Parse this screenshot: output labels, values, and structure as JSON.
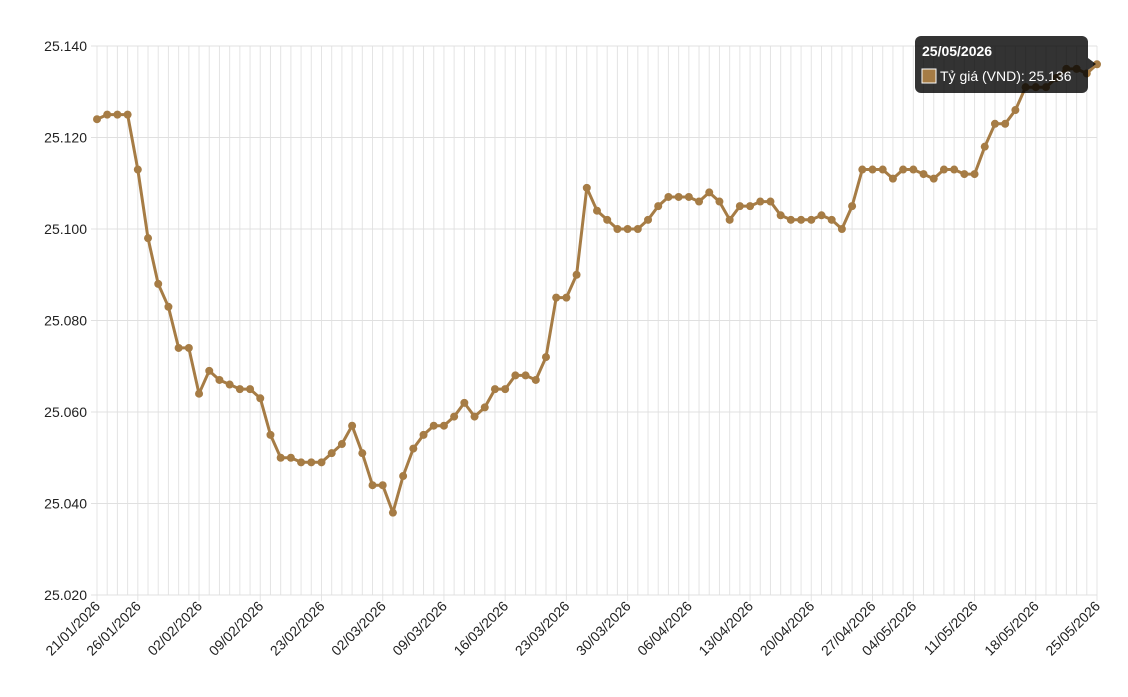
{
  "chart_data": {
    "type": "line",
    "categories": [
      "21/01/2026",
      null,
      null,
      null,
      "26/01/2026",
      null,
      null,
      null,
      null,
      null,
      "02/02/2026",
      null,
      null,
      null,
      null,
      null,
      "09/02/2026",
      null,
      null,
      null,
      null,
      null,
      "23/02/2026",
      null,
      null,
      null,
      null,
      null,
      "02/03/2026",
      null,
      null,
      null,
      null,
      null,
      "09/03/2026",
      null,
      null,
      null,
      null,
      null,
      "16/03/2026",
      null,
      null,
      null,
      null,
      null,
      "23/03/2026",
      null,
      null,
      null,
      null,
      null,
      "30/03/2026",
      null,
      null,
      null,
      null,
      null,
      "06/04/2026",
      null,
      null,
      null,
      null,
      null,
      "13/04/2026",
      null,
      null,
      null,
      null,
      null,
      "20/04/2026",
      null,
      null,
      null,
      null,
      null,
      "27/04/2026",
      null,
      null,
      null,
      "04/05/2026",
      null,
      null,
      null,
      null,
      null,
      "11/05/2026",
      null,
      null,
      null,
      null,
      null,
      "18/05/2026",
      null,
      null,
      null,
      null,
      null,
      "25/05/2026"
    ],
    "values": [
      25124,
      25125,
      25125,
      25125,
      25113,
      25098,
      25088,
      25083,
      25074,
      25074,
      25064,
      25069,
      25067,
      25066,
      25065,
      25065,
      25063,
      25055,
      25050,
      25050,
      25049,
      25049,
      25049,
      25051,
      25053,
      25057,
      25051,
      25044,
      25044,
      25038,
      25046,
      25052,
      25055,
      25057,
      25057,
      25059,
      25062,
      25059,
      25061,
      25065,
      25065,
      25068,
      25068,
      25067,
      25072,
      25085,
      25085,
      25090,
      25109,
      25104,
      25102,
      25100,
      25100,
      25100,
      25102,
      25105,
      25107,
      25107,
      25107,
      25106,
      25108,
      25106,
      25102,
      25105,
      25105,
      25106,
      25106,
      25103,
      25102,
      25102,
      25102,
      25103,
      25102,
      25100,
      25105,
      25113,
      25113,
      25113,
      25111,
      25113,
      25113,
      25112,
      25111,
      25113,
      25113,
      25112,
      25112,
      25118,
      25123,
      25123,
      25126,
      25131,
      25131,
      25131,
      25133,
      25135,
      25135,
      25134,
      25136
    ],
    "color": "#a67c45",
    "ylim": [
      25020,
      25140
    ],
    "yticks": [
      {
        "value": 25020,
        "label": "25.020"
      },
      {
        "value": 25040,
        "label": "25.040"
      },
      {
        "value": 25060,
        "label": "25.060"
      },
      {
        "value": 25080,
        "label": "25.080"
      },
      {
        "value": 25100,
        "label": "25.100"
      },
      {
        "value": 25120,
        "label": "25.120"
      },
      {
        "value": 25140,
        "label": "25.140"
      }
    ],
    "grid": true,
    "tooltip": {
      "title": "25/05/2026",
      "label": "Tỷ giá (VND): 25.136"
    }
  }
}
